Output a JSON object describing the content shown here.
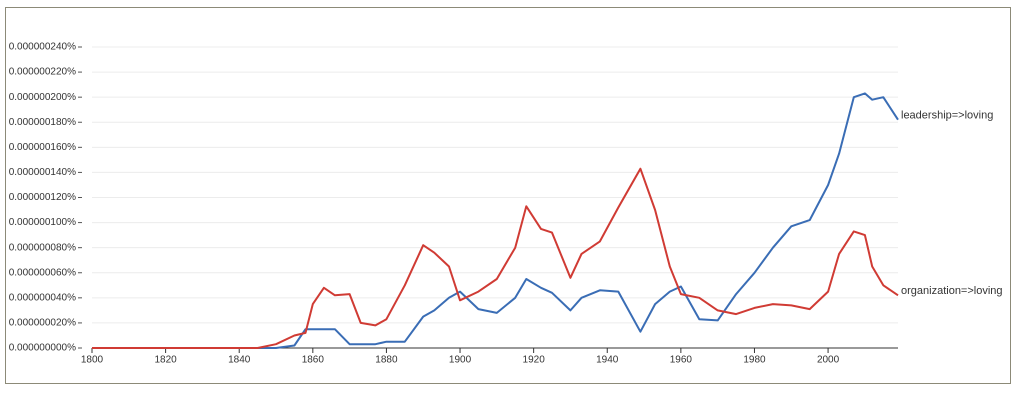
{
  "chart_data": {
    "type": "line",
    "x": [
      1800,
      1810,
      1820,
      1830,
      1840,
      1845,
      1850,
      1855,
      1858,
      1860,
      1863,
      1866,
      1870,
      1873,
      1877,
      1880,
      1885,
      1890,
      1893,
      1897,
      1900,
      1905,
      1910,
      1915,
      1918,
      1922,
      1925,
      1930,
      1933,
      1938,
      1943,
      1949,
      1953,
      1957,
      1960,
      1965,
      1970,
      1975,
      1980,
      1985,
      1990,
      1995,
      2000,
      2003,
      2007,
      2010,
      2012,
      2015,
      2019
    ],
    "series": [
      {
        "name": "leadership=>loving",
        "color": "#3a6db5",
        "values": [
          0,
          0,
          0,
          0,
          0,
          0,
          0,
          2e-09,
          1.5e-08,
          1.5e-08,
          1.5e-08,
          1.5e-08,
          3e-09,
          3e-09,
          3e-09,
          5e-09,
          5e-09,
          2.5e-08,
          3e-08,
          4e-08,
          4.5e-08,
          3.1e-08,
          2.8e-08,
          4e-08,
          5.5e-08,
          4.8e-08,
          4.4e-08,
          3e-08,
          4e-08,
          4.6e-08,
          4.5e-08,
          1.3e-08,
          3.5e-08,
          4.5e-08,
          4.9e-08,
          2.3e-08,
          2.2e-08,
          4.3e-08,
          6e-08,
          8e-08,
          9.7e-08,
          1.02e-07,
          1.3e-07,
          1.55e-07,
          2e-07,
          2.03e-07,
          1.98e-07,
          2e-07,
          1.82e-07
        ]
      },
      {
        "name": "organization=>loving",
        "color": "#d03b34",
        "values": [
          0,
          0,
          0,
          0,
          0,
          0,
          3e-09,
          1e-08,
          1.2e-08,
          3.5e-08,
          4.8e-08,
          4.2e-08,
          4.3e-08,
          2e-08,
          1.8e-08,
          2.3e-08,
          5e-08,
          8.2e-08,
          7.6e-08,
          6.5e-08,
          3.8e-08,
          4.5e-08,
          5.5e-08,
          8e-08,
          1.13e-07,
          9.5e-08,
          9.2e-08,
          5.6e-08,
          7.5e-08,
          8.5e-08,
          1.12e-07,
          1.43e-07,
          1.1e-07,
          6.5e-08,
          4.3e-08,
          4e-08,
          3e-08,
          2.7e-08,
          3.2e-08,
          3.5e-08,
          3.4e-08,
          3.1e-08,
          4.5e-08,
          7.5e-08,
          9.3e-08,
          9e-08,
          6.5e-08,
          5e-08,
          4.2e-08
        ]
      }
    ],
    "xlim": [
      1800,
      2019
    ],
    "xticks": [
      1800,
      1820,
      1840,
      1860,
      1880,
      1900,
      1920,
      1940,
      1960,
      1980,
      2000
    ],
    "ylim": [
      0,
      2.4e-07
    ],
    "yticks": [
      {
        "value": 0,
        "label": "0.000000000%"
      },
      {
        "value": 2e-08,
        "label": "0.000000020%"
      },
      {
        "value": 4e-08,
        "label": "0.000000040%"
      },
      {
        "value": 6e-08,
        "label": "0.000000060%"
      },
      {
        "value": 8e-08,
        "label": "0.000000080%"
      },
      {
        "value": 1e-07,
        "label": "0.000000100%"
      },
      {
        "value": 1.2e-07,
        "label": "0.000000120%"
      },
      {
        "value": 1.4e-07,
        "label": "0.000000140%"
      },
      {
        "value": 1.6e-07,
        "label": "0.000000160%"
      },
      {
        "value": 1.8e-07,
        "label": "0.000000180%"
      },
      {
        "value": 2e-07,
        "label": "0.000000200%"
      },
      {
        "value": 2.2e-07,
        "label": "0.000000220%"
      },
      {
        "value": 2.4e-07,
        "label": "0.000000240%"
      }
    ],
    "grid": true
  }
}
